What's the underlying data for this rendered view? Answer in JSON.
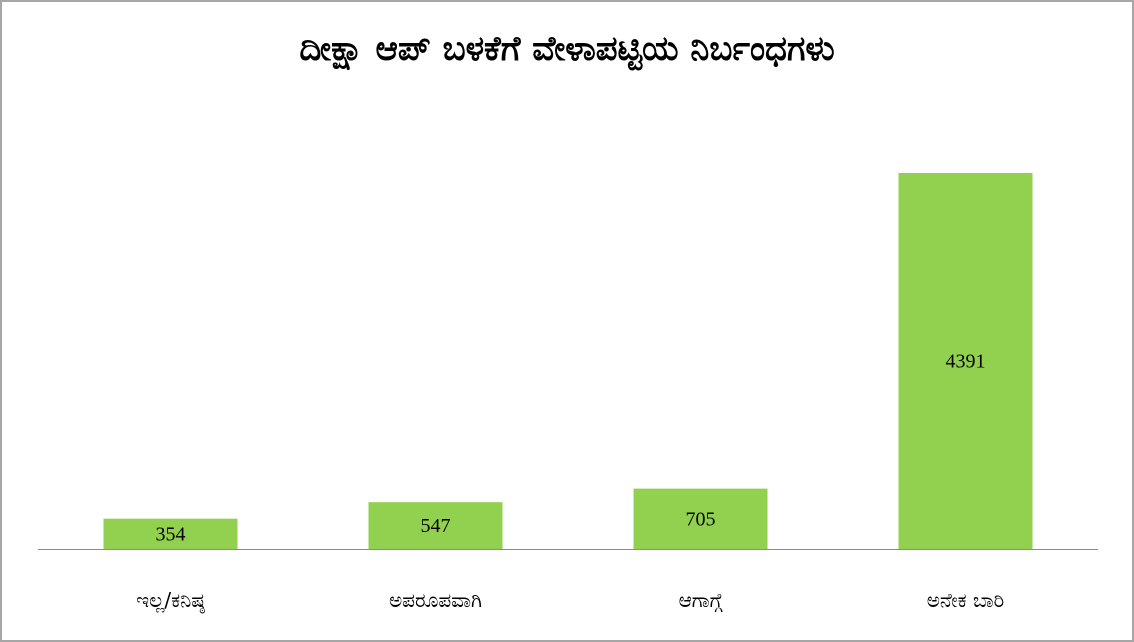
{
  "chart_data": {
    "type": "bar",
    "title": "ದೀಕ್ಷಾ ಆಪ್ ಬಳಕೆಗೆ ವೇಳಾಪಟ್ಟಿಯ ನಿರ್ಬಂಧಗಳು",
    "categories": [
      "ಇಲ್ಲ/ಕನಿಷ್ಠ",
      "ಅಪರೂಪವಾಗಿ",
      "ಆಗಾಗ್ಗೆ",
      "ಅನೇಕ ಬಾರಿ"
    ],
    "values": [
      354,
      547,
      705,
      4391
    ],
    "color": "#92d050"
  }
}
